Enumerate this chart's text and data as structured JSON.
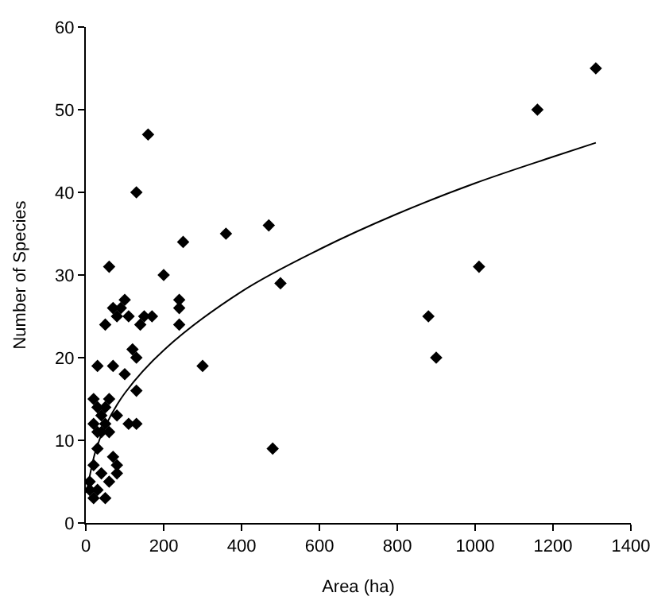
{
  "chart_data": {
    "type": "scatter",
    "xlabel": "Area (ha)",
    "ylabel": "Number of Species",
    "xlim": [
      0,
      1400
    ],
    "xticks": [
      0,
      200,
      400,
      600,
      800,
      1000,
      1200,
      1400
    ],
    "ylim": [
      0,
      60
    ],
    "yticks": [
      0,
      10,
      20,
      30,
      40,
      50,
      60
    ],
    "grid": false,
    "marker": "diamond",
    "series": [
      {
        "color": "#000000",
        "x": [
          1310,
          1160,
          470,
          360,
          1010,
          500,
          880,
          900,
          480,
          300,
          250,
          200,
          240,
          240,
          240,
          160,
          130,
          150,
          170,
          140,
          60,
          50,
          80,
          90,
          70,
          100,
          110,
          30,
          70,
          100,
          120,
          130,
          130,
          110,
          130,
          80,
          20,
          30,
          40,
          50,
          60,
          20,
          30,
          40,
          60,
          50,
          70,
          80,
          80,
          20,
          30,
          40,
          60,
          10,
          10,
          20,
          50,
          30
        ],
        "values": [
          55,
          50,
          36,
          35,
          31,
          29,
          25,
          20,
          9,
          19,
          34,
          30,
          27,
          26,
          24,
          47,
          40,
          25,
          25,
          24,
          31,
          24,
          25,
          26,
          26,
          27,
          25,
          19,
          19,
          18,
          21,
          20,
          16,
          12,
          12,
          13,
          15,
          14,
          13,
          14,
          15,
          12,
          11,
          11,
          11,
          12,
          8,
          7,
          6,
          7,
          9,
          6,
          5,
          5,
          4,
          3,
          3,
          4
        ]
      },
      {
        "type": "line",
        "color": "#000000",
        "marker": "none",
        "x": [
          5,
          25,
          50,
          100,
          200,
          400,
          600,
          800,
          1000,
          1200,
          1310
        ],
        "values": [
          4.4,
          8.7,
          11.7,
          15.7,
          20.9,
          28.0,
          33.1,
          37.4,
          41.1,
          44.3,
          46.0
        ]
      }
    ]
  }
}
